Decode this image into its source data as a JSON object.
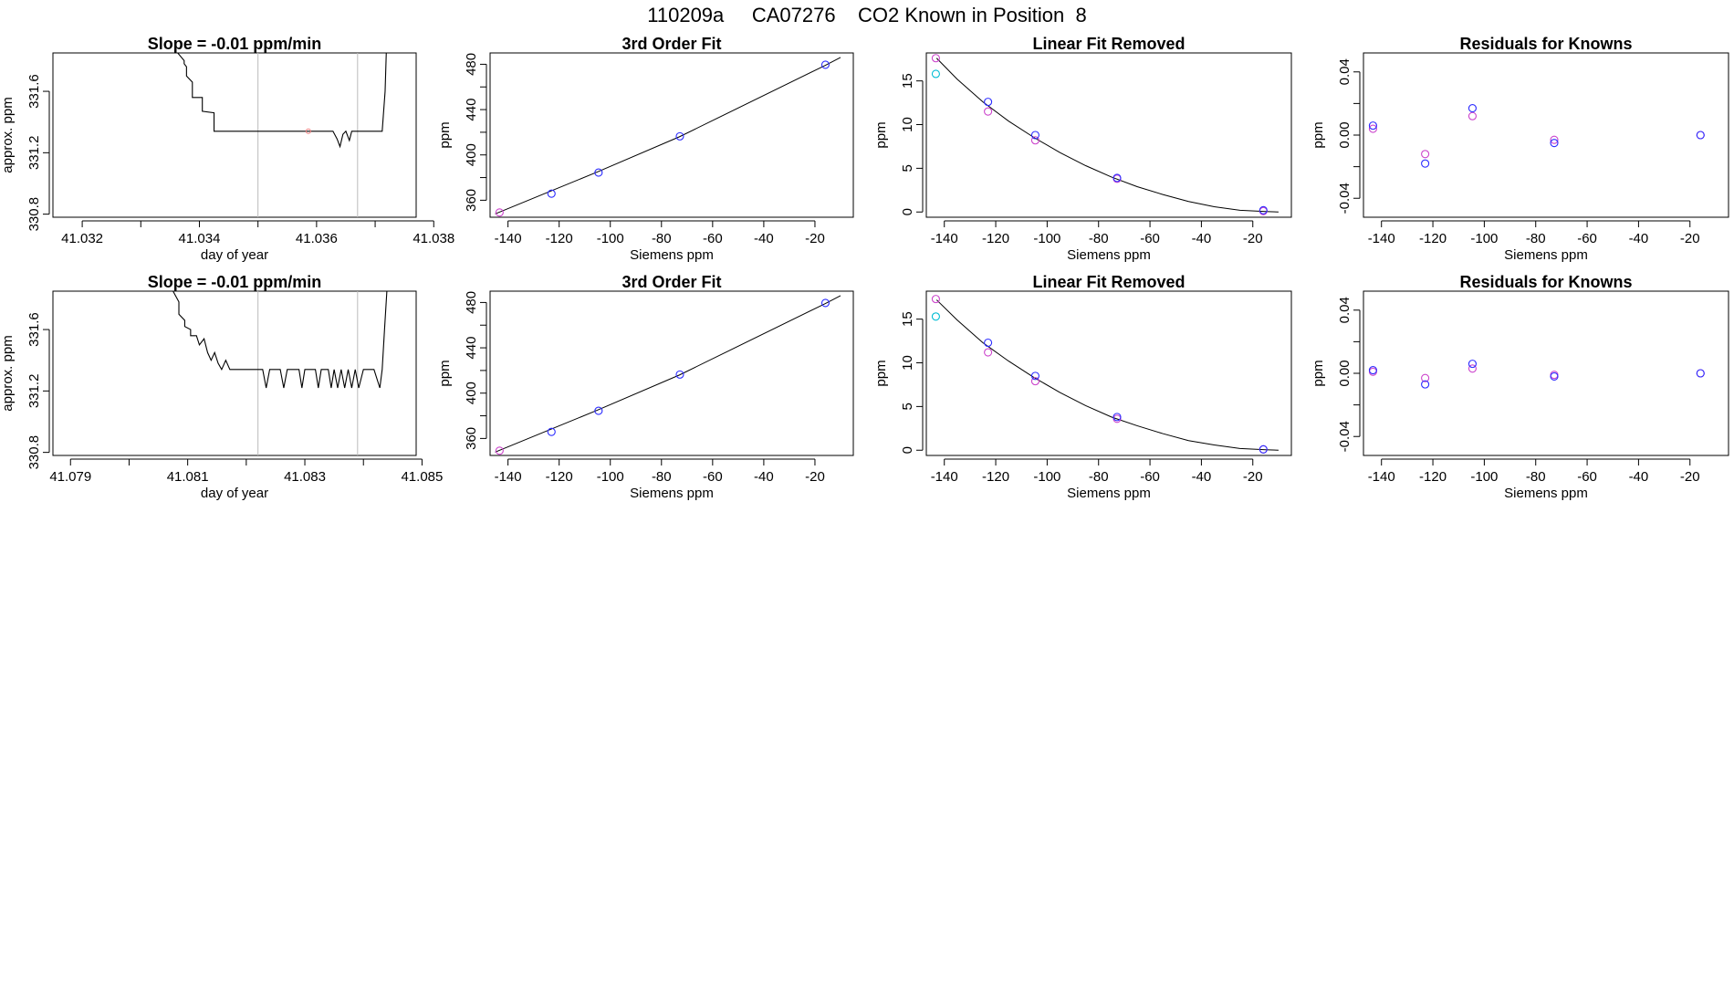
{
  "page": {
    "title": "110209a     CA07276    CO2 Known in Position  8"
  },
  "colors": {
    "line": "#000000",
    "frame": "#000000",
    "marker_line": "#1a00cc",
    "marker_a": "#2b2bff",
    "marker_b": "#cc44cc",
    "marker_c": "#00bcd4",
    "window_line": "#bbbbbb",
    "faint_marker": "#f08080"
  },
  "chart_data": [
    {
      "type": "line",
      "panel": "row1-timeseries",
      "title": "Slope =  -0.01  ppm/min",
      "xlabel": "day of year",
      "ylabel": "approx. ppm",
      "xlim": [
        41.0315,
        41.0377
      ],
      "ylim": [
        330.78,
        331.85
      ],
      "xticks": [
        41.032,
        41.033,
        41.034,
        41.035,
        41.036,
        41.037,
        41.038
      ],
      "xtick_labels": [
        "41.032",
        "",
        "41.034",
        "",
        "41.036",
        "",
        "41.038"
      ],
      "yticks": [
        330.8,
        331.2,
        331.6
      ],
      "ytick_labels": [
        "330.8",
        "331.2",
        "331.6"
      ],
      "vlines": [
        41.035,
        41.0367
      ],
      "x": [
        41.03363,
        41.03374,
        41.03374,
        41.03378,
        41.03378,
        41.03388,
        41.03388,
        41.03405,
        41.03405,
        41.03425,
        41.03425,
        41.03453,
        41.03453,
        41.03628,
        41.03635,
        41.0364,
        41.03645,
        41.0365,
        41.03656,
        41.0366,
        41.03665,
        41.03712,
        41.03717,
        41.03719
      ],
      "y": [
        331.85,
        331.8,
        331.78,
        331.76,
        331.7,
        331.66,
        331.56,
        331.56,
        331.47,
        331.46,
        331.34,
        331.34,
        331.34,
        331.34,
        331.29,
        331.24,
        331.32,
        331.34,
        331.28,
        331.34,
        331.34,
        331.34,
        331.6,
        331.85
      ],
      "highlight_points": [
        {
          "x": 41.03586,
          "y": 331.34
        }
      ]
    },
    {
      "type": "scatter",
      "panel": "row1-fit",
      "title": "3rd Order Fit",
      "xlabel": "Siemens ppm",
      "ylabel": "ppm",
      "xlim": [
        -147,
        -5
      ],
      "ylim": [
        345,
        490
      ],
      "xticks": [
        -140,
        -120,
        -100,
        -80,
        -60,
        -40,
        -20
      ],
      "xtick_labels": [
        "-140",
        "-120",
        "-100",
        "-80",
        "-60",
        "-40",
        "-20"
      ],
      "yticks": [
        360,
        380,
        400,
        420,
        440,
        460,
        480
      ],
      "ytick_labels": [
        "360",
        "",
        "400",
        "",
        "440",
        "",
        "480"
      ],
      "curve": {
        "x": [
          -145,
          -125,
          -105,
          -73,
          -16,
          -10
        ],
        "y": [
          348,
          366.5,
          385,
          416,
          479,
          486
        ]
      },
      "series": [
        {
          "color_key": "marker_b",
          "x": [
            -143.3
          ],
          "y": [
            349.2
          ]
        },
        {
          "color_key": "marker_a",
          "x": [
            -123.0,
            -104.6,
            -72.8,
            -15.9
          ],
          "y": [
            365.8,
            384.4,
            416.4,
            479.6
          ]
        }
      ]
    },
    {
      "type": "scatter",
      "panel": "row1-linear-removed",
      "title": "Linear Fit Removed",
      "xlabel": "Siemens ppm",
      "ylabel": "ppm",
      "xlim": [
        -147,
        -5
      ],
      "ylim": [
        -0.6,
        18.2
      ],
      "xticks": [
        -140,
        -120,
        -100,
        -80,
        -60,
        -40,
        -20
      ],
      "xtick_labels": [
        "-140",
        "-120",
        "-100",
        "-80",
        "-60",
        "-40",
        "-20"
      ],
      "yticks": [
        0,
        5,
        10,
        15
      ],
      "ytick_labels": [
        "0",
        "5",
        "10",
        "15"
      ],
      "curve": {
        "x": [
          -143,
          -135,
          -125,
          -115,
          -105,
          -95,
          -85,
          -75,
          -65,
          -55,
          -45,
          -35,
          -25,
          -15,
          -10
        ],
        "y": [
          17.6,
          15.2,
          12.6,
          10.4,
          8.5,
          6.8,
          5.3,
          4.0,
          2.9,
          2.0,
          1.2,
          0.6,
          0.2,
          0.05,
          0.0
        ]
      },
      "series": [
        {
          "color_key": "marker_c",
          "x": [
            -143.3
          ],
          "y": [
            15.8
          ]
        },
        {
          "color_key": "marker_b",
          "x": [
            -143.3,
            -123.0,
            -104.6,
            -72.8,
            -15.9
          ],
          "y": [
            17.6,
            11.5,
            8.2,
            3.8,
            0.1
          ]
        },
        {
          "color_key": "marker_a",
          "x": [
            -123.0,
            -104.6,
            -72.8,
            -15.9
          ],
          "y": [
            12.6,
            8.8,
            3.9,
            0.2
          ]
        }
      ]
    },
    {
      "type": "scatter",
      "panel": "row1-residuals",
      "title": "Residuals for Knowns",
      "xlabel": "Siemens ppm",
      "ylabel": "ppm",
      "xlim": [
        -147,
        -5
      ],
      "ylim": [
        -0.052,
        0.052
      ],
      "xticks": [
        -140,
        -120,
        -100,
        -80,
        -60,
        -40,
        -20
      ],
      "xtick_labels": [
        "-140",
        "-120",
        "-100",
        "-80",
        "-60",
        "-40",
        "-20"
      ],
      "yticks": [
        -0.04,
        -0.02,
        0.0,
        0.02,
        0.04
      ],
      "ytick_labels": [
        "-0.04",
        "",
        "0.00",
        "",
        "0.04"
      ],
      "series": [
        {
          "color_key": "marker_b",
          "x": [
            -143.3,
            -123.0,
            -104.6,
            -72.8,
            -15.9
          ],
          "y": [
            0.004,
            -0.012,
            0.012,
            -0.003,
            0.0
          ]
        },
        {
          "color_key": "marker_a",
          "x": [
            -143.3,
            -123.0,
            -104.6,
            -72.8,
            -15.9
          ],
          "y": [
            0.006,
            -0.018,
            0.017,
            -0.005,
            0.0
          ]
        }
      ]
    },
    {
      "type": "line",
      "panel": "row2-timeseries",
      "title": "Slope =  -0.01  ppm/min",
      "xlabel": "day of year",
      "ylabel": "approx. ppm",
      "xlim": [
        41.0787,
        41.0849
      ],
      "ylim": [
        330.78,
        331.85
      ],
      "xticks": [
        41.079,
        41.08,
        41.081,
        41.082,
        41.083,
        41.084,
        41.085
      ],
      "xtick_labels": [
        "41.079",
        "",
        "41.081",
        "",
        "41.083",
        "",
        "41.085"
      ],
      "yticks": [
        330.8,
        331.2,
        331.6
      ],
      "ytick_labels": [
        "330.8",
        "331.2",
        "331.6"
      ],
      "vlines": [
        41.0822,
        41.0839
      ],
      "x": [
        41.08075,
        41.08085,
        41.08085,
        41.08095,
        41.08095,
        41.08105,
        41.08105,
        41.08115,
        41.0812,
        41.08128,
        41.08134,
        41.0814,
        41.08146,
        41.08152,
        41.08158,
        41.08165,
        41.08172,
        41.08178,
        41.08184,
        41.0819,
        41.08196,
        41.08202,
        41.08228,
        41.08234,
        41.0824,
        41.08246,
        41.08258,
        41.08264,
        41.0827,
        41.08276,
        41.0829,
        41.08295,
        41.083,
        41.08318,
        41.08323,
        41.08328,
        41.0834,
        41.08345,
        41.0835,
        41.08356,
        41.08362,
        41.08368,
        41.08374,
        41.0838,
        41.08386,
        41.08392,
        41.084,
        41.08406,
        41.08412,
        41.08418,
        41.08428,
        41.08432,
        41.08436,
        41.0844
      ],
      "y": [
        331.85,
        331.78,
        331.7,
        331.66,
        331.62,
        331.6,
        331.56,
        331.56,
        331.5,
        331.54,
        331.45,
        331.4,
        331.45,
        331.38,
        331.34,
        331.4,
        331.34,
        331.34,
        331.34,
        331.34,
        331.34,
        331.34,
        331.34,
        331.22,
        331.34,
        331.34,
        331.34,
        331.22,
        331.34,
        331.34,
        331.34,
        331.22,
        331.34,
        331.34,
        331.22,
        331.34,
        331.34,
        331.22,
        331.34,
        331.22,
        331.34,
        331.22,
        331.34,
        331.22,
        331.34,
        331.22,
        331.34,
        331.34,
        331.34,
        331.34,
        331.22,
        331.34,
        331.6,
        331.85
      ]
    },
    {
      "type": "scatter",
      "panel": "row2-fit",
      "title": "3rd Order Fit",
      "xlabel": "Siemens ppm",
      "ylabel": "ppm",
      "xlim": [
        -147,
        -5
      ],
      "ylim": [
        345,
        490
      ],
      "xticks": [
        -140,
        -120,
        -100,
        -80,
        -60,
        -40,
        -20
      ],
      "xtick_labels": [
        "-140",
        "-120",
        "-100",
        "-80",
        "-60",
        "-40",
        "-20"
      ],
      "yticks": [
        360,
        380,
        400,
        420,
        440,
        460,
        480
      ],
      "ytick_labels": [
        "360",
        "",
        "400",
        "",
        "440",
        "",
        "480"
      ],
      "curve": {
        "x": [
          -145,
          -125,
          -105,
          -73,
          -16,
          -10
        ],
        "y": [
          348,
          366.5,
          385,
          416,
          479,
          486
        ]
      },
      "series": [
        {
          "color_key": "marker_b",
          "x": [
            -143.3
          ],
          "y": [
            349.2
          ]
        },
        {
          "color_key": "marker_a",
          "x": [
            -123.0,
            -104.6,
            -72.8,
            -15.9
          ],
          "y": [
            365.8,
            384.4,
            416.4,
            479.6
          ]
        }
      ]
    },
    {
      "type": "scatter",
      "panel": "row2-linear-removed",
      "title": "Linear Fit Removed",
      "xlabel": "Siemens ppm",
      "ylabel": "ppm",
      "xlim": [
        -147,
        -5
      ],
      "ylim": [
        -0.6,
        18.2
      ],
      "xticks": [
        -140,
        -120,
        -100,
        -80,
        -60,
        -40,
        -20
      ],
      "xtick_labels": [
        "-140",
        "-120",
        "-100",
        "-80",
        "-60",
        "-40",
        "-20"
      ],
      "yticks": [
        0,
        5,
        10,
        15
      ],
      "ytick_labels": [
        "0",
        "5",
        "10",
        "15"
      ],
      "curve": {
        "x": [
          -143,
          -135,
          -125,
          -115,
          -105,
          -95,
          -85,
          -75,
          -65,
          -55,
          -45,
          -35,
          -25,
          -15,
          -10
        ],
        "y": [
          17.2,
          14.9,
          12.3,
          10.2,
          8.3,
          6.6,
          5.1,
          3.8,
          2.8,
          1.9,
          1.1,
          0.6,
          0.2,
          0.05,
          0.0
        ]
      },
      "series": [
        {
          "color_key": "marker_c",
          "x": [
            -143.3
          ],
          "y": [
            15.3
          ]
        },
        {
          "color_key": "marker_b",
          "x": [
            -143.3,
            -123.0,
            -104.6,
            -72.8,
            -15.9
          ],
          "y": [
            17.3,
            11.2,
            7.9,
            3.6,
            0.1
          ]
        },
        {
          "color_key": "marker_a",
          "x": [
            -123.0,
            -104.6,
            -72.8,
            -15.9
          ],
          "y": [
            12.3,
            8.5,
            3.8,
            0.1
          ]
        }
      ]
    },
    {
      "type": "scatter",
      "panel": "row2-residuals",
      "title": "Residuals for Knowns",
      "xlabel": "Siemens ppm",
      "ylabel": "ppm",
      "xlim": [
        -147,
        -5
      ],
      "ylim": [
        -0.052,
        0.052
      ],
      "xticks": [
        -140,
        -120,
        -100,
        -80,
        -60,
        -40,
        -20
      ],
      "xtick_labels": [
        "-140",
        "-120",
        "-100",
        "-80",
        "-60",
        "-40",
        "-20"
      ],
      "yticks": [
        -0.04,
        -0.02,
        0.0,
        0.02,
        0.04
      ],
      "ytick_labels": [
        "-0.04",
        "",
        "0.00",
        "",
        "0.04"
      ],
      "series": [
        {
          "color_key": "marker_b",
          "x": [
            -143.3,
            -123.0,
            -104.6,
            -72.8,
            -15.9
          ],
          "y": [
            0.001,
            -0.003,
            0.003,
            -0.001,
            0.0
          ]
        },
        {
          "color_key": "marker_a",
          "x": [
            -143.3,
            -123.0,
            -104.6,
            -72.8,
            -15.9
          ],
          "y": [
            0.002,
            -0.007,
            0.006,
            -0.002,
            0.0
          ]
        }
      ]
    }
  ]
}
